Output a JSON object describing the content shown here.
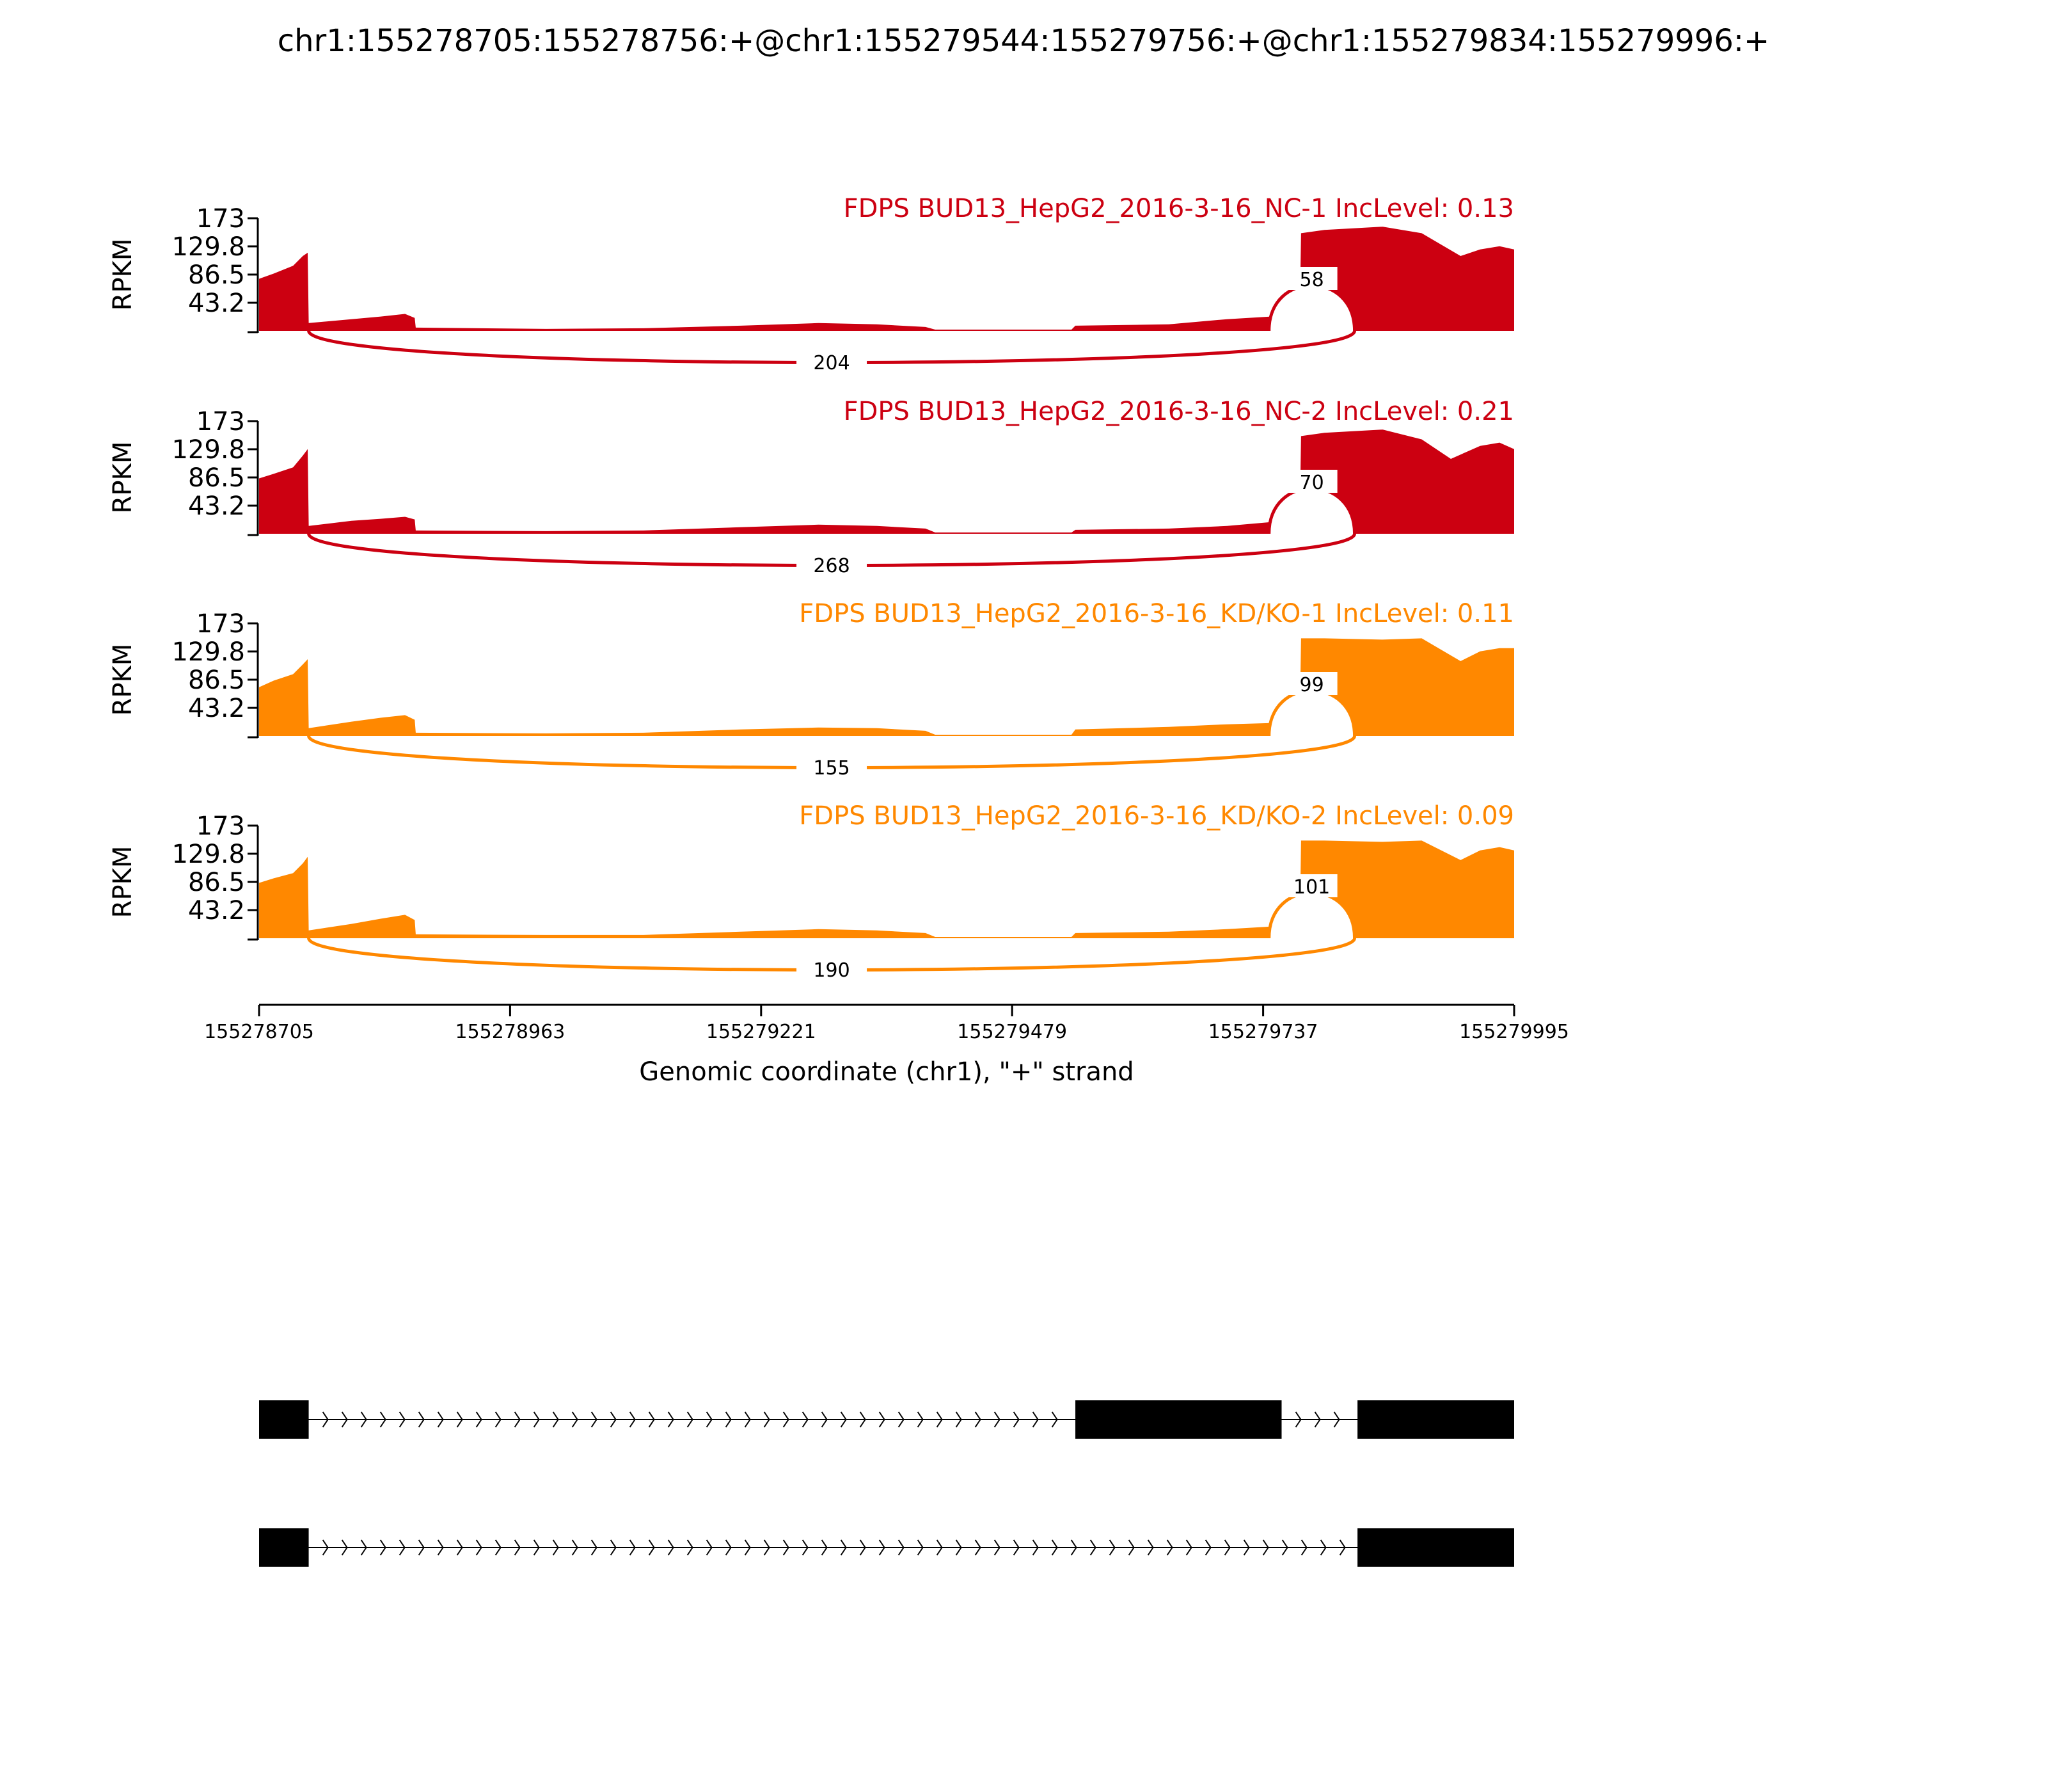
{
  "title": "chr1:155278705:155278756:+@chr1:155279544:155279756:+@chr1:155279834:155279996:+",
  "chart_data": {
    "type": "area",
    "subtype": "sashimi",
    "ylabel": "RPKM",
    "ylim": [
      0,
      173
    ],
    "yticks": [
      "173",
      "129.8",
      "86.5",
      "43.2"
    ],
    "xlabel": "Genomic coordinate (chr1), \"+\" strand",
    "xlim": [
      155278705,
      155279995
    ],
    "xticks": [
      "155278705",
      "155278963",
      "155279221",
      "155279479",
      "155279737",
      "155279995"
    ],
    "tracks": [
      {
        "label": "FDPS BUD13_HepG2_2016-3-16_NC-1 IncLevel: 0.13",
        "color": "#cc0011",
        "short_junction_count": "58",
        "long_junction_count": "204",
        "coverage": [
          [
            155278705,
            80
          ],
          [
            155278720,
            88
          ],
          [
            155278740,
            100
          ],
          [
            155278750,
            115
          ],
          [
            155278755,
            120
          ],
          [
            155278756,
            12
          ],
          [
            155278800,
            18
          ],
          [
            155278830,
            22
          ],
          [
            155278855,
            26
          ],
          [
            155278865,
            20
          ],
          [
            155278866,
            5
          ],
          [
            155279000,
            3
          ],
          [
            155279100,
            4
          ],
          [
            155279200,
            8
          ],
          [
            155279280,
            12
          ],
          [
            155279340,
            10
          ],
          [
            155279390,
            6
          ],
          [
            155279400,
            2
          ],
          [
            155279540,
            2
          ],
          [
            155279544,
            8
          ],
          [
            155279640,
            10
          ],
          [
            155279700,
            18
          ],
          [
            155279745,
            22
          ],
          [
            155279756,
            24
          ],
          [
            155279757,
            55
          ],
          [
            155279775,
            55
          ],
          [
            155279776,
            150
          ],
          [
            155279800,
            155
          ],
          [
            155279860,
            160
          ],
          [
            155279900,
            150
          ],
          [
            155279940,
            115
          ],
          [
            155279960,
            125
          ],
          [
            155279980,
            130
          ],
          [
            155279995,
            125
          ]
        ]
      },
      {
        "label": "FDPS BUD13_HepG2_2016-3-16_NC-2 IncLevel: 0.21",
        "color": "#cc0011",
        "short_junction_count": "70",
        "long_junction_count": "268",
        "coverage": [
          [
            155278705,
            85
          ],
          [
            155278720,
            92
          ],
          [
            155278740,
            102
          ],
          [
            155278750,
            120
          ],
          [
            155278755,
            130
          ],
          [
            155278756,
            12
          ],
          [
            155278800,
            20
          ],
          [
            155278830,
            23
          ],
          [
            155278855,
            26
          ],
          [
            155278865,
            22
          ],
          [
            155278866,
            5
          ],
          [
            155279000,
            4
          ],
          [
            155279100,
            5
          ],
          [
            155279200,
            10
          ],
          [
            155279280,
            14
          ],
          [
            155279340,
            12
          ],
          [
            155279390,
            8
          ],
          [
            155279400,
            2
          ],
          [
            155279540,
            2
          ],
          [
            155279544,
            6
          ],
          [
            155279640,
            8
          ],
          [
            155279700,
            12
          ],
          [
            155279745,
            18
          ],
          [
            155279756,
            20
          ],
          [
            155279757,
            55
          ],
          [
            155279775,
            55
          ],
          [
            155279776,
            150
          ],
          [
            155279800,
            155
          ],
          [
            155279860,
            160
          ],
          [
            155279900,
            145
          ],
          [
            155279930,
            115
          ],
          [
            155279960,
            135
          ],
          [
            155279980,
            140
          ],
          [
            155279995,
            130
          ]
        ]
      },
      {
        "label": "FDPS BUD13_HepG2_2016-3-16_KD/KO-1 IncLevel: 0.11",
        "color": "#ff8800",
        "short_junction_count": "99",
        "long_junction_count": "155",
        "coverage": [
          [
            155278705,
            75
          ],
          [
            155278720,
            85
          ],
          [
            155278740,
            95
          ],
          [
            155278750,
            110
          ],
          [
            155278755,
            118
          ],
          [
            155278756,
            12
          ],
          [
            155278800,
            22
          ],
          [
            155278830,
            28
          ],
          [
            155278855,
            32
          ],
          [
            155278865,
            25
          ],
          [
            155278866,
            5
          ],
          [
            155279000,
            4
          ],
          [
            155279100,
            5
          ],
          [
            155279200,
            10
          ],
          [
            155279280,
            13
          ],
          [
            155279340,
            12
          ],
          [
            155279390,
            8
          ],
          [
            155279400,
            2
          ],
          [
            155279540,
            2
          ],
          [
            155279544,
            10
          ],
          [
            155279640,
            14
          ],
          [
            155279700,
            18
          ],
          [
            155279745,
            20
          ],
          [
            155279756,
            22
          ],
          [
            155279757,
            55
          ],
          [
            155279775,
            55
          ],
          [
            155279776,
            150
          ],
          [
            155279800,
            150
          ],
          [
            155279860,
            148
          ],
          [
            155279900,
            150
          ],
          [
            155279940,
            115
          ],
          [
            155279960,
            130
          ],
          [
            155279980,
            135
          ],
          [
            155279995,
            135
          ]
        ]
      },
      {
        "label": "FDPS BUD13_HepG2_2016-3-16_KD/KO-2 IncLevel: 0.09",
        "color": "#ff8800",
        "short_junction_count": "101",
        "long_junction_count": "190",
        "coverage": [
          [
            155278705,
            85
          ],
          [
            155278720,
            92
          ],
          [
            155278740,
            100
          ],
          [
            155278750,
            115
          ],
          [
            155278755,
            125
          ],
          [
            155278756,
            12
          ],
          [
            155278800,
            22
          ],
          [
            155278830,
            30
          ],
          [
            155278855,
            36
          ],
          [
            155278865,
            28
          ],
          [
            155278866,
            6
          ],
          [
            155279000,
            5
          ],
          [
            155279100,
            5
          ],
          [
            155279200,
            10
          ],
          [
            155279280,
            14
          ],
          [
            155279340,
            12
          ],
          [
            155279390,
            8
          ],
          [
            155279400,
            2
          ],
          [
            155279540,
            2
          ],
          [
            155279544,
            8
          ],
          [
            155279640,
            10
          ],
          [
            155279700,
            14
          ],
          [
            155279745,
            18
          ],
          [
            155279756,
            20
          ],
          [
            155279757,
            45
          ],
          [
            155279775,
            45
          ],
          [
            155279776,
            150
          ],
          [
            155279800,
            150
          ],
          [
            155279860,
            148
          ],
          [
            155279900,
            150
          ],
          [
            155279940,
            120
          ],
          [
            155279960,
            135
          ],
          [
            155279980,
            140
          ],
          [
            155279995,
            135
          ]
        ]
      }
    ],
    "gene_models": [
      {
        "exons": [
          [
            155278705,
            155278756
          ],
          [
            155279544,
            155279756
          ],
          [
            155279834,
            155279995
          ]
        ],
        "strand": "+"
      },
      {
        "exons": [
          [
            155278705,
            155278756
          ],
          [
            155279834,
            155279995
          ]
        ],
        "strand": "+"
      }
    ]
  }
}
